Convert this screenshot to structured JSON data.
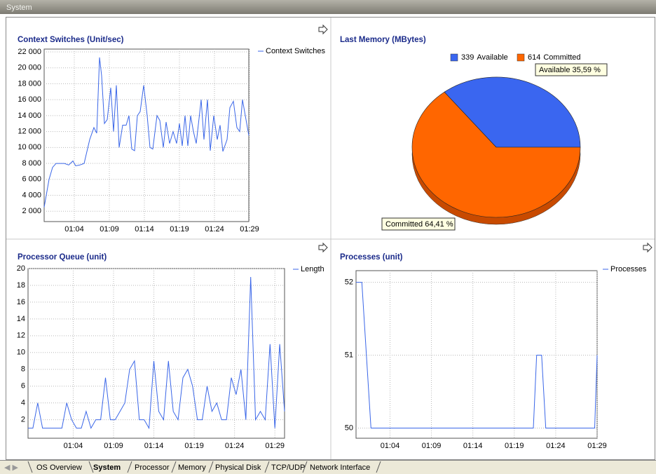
{
  "window": {
    "title": "System"
  },
  "chart_data": [
    {
      "type": "line",
      "title": "Context Switches (Unit/sec)",
      "x": [
        59.7,
        60.4,
        60.9,
        61.4,
        62,
        62.6,
        63.2,
        63.8,
        64.2,
        64.8,
        65.4,
        66.2,
        66.8,
        67.2,
        67.6,
        67.9,
        68.3,
        68.7,
        69.2,
        69.6,
        70,
        70.4,
        70.9,
        71.4,
        71.8,
        72.2,
        72.6,
        73,
        73.4,
        73.9,
        74.4,
        74.8,
        75.2,
        75.8,
        76.2,
        76.7,
        77.1,
        77.6,
        78.1,
        78.6,
        79,
        79.4,
        79.8,
        80.2,
        80.6,
        81,
        81.4,
        82.1,
        82.5,
        83,
        83.4,
        83.9,
        84.4,
        84.8,
        85.2,
        85.8,
        86.2,
        86.7,
        87.2,
        87.6,
        88,
        88.4,
        88.9
      ],
      "series": [
        {
          "name": "Context Switches",
          "color": "#3a66e8",
          "values": [
            2500,
            6000,
            7500,
            8000,
            8000,
            8000,
            7800,
            8300,
            7700,
            7800,
            8000,
            11000,
            12500,
            11800,
            21300,
            19000,
            13000,
            13500,
            17500,
            12000,
            17800,
            10000,
            12800,
            12800,
            14000,
            9800,
            9600,
            14000,
            14500,
            17800,
            14000,
            10000,
            9800,
            14000,
            13400,
            10000,
            13200,
            10500,
            12000,
            10500,
            13000,
            10200,
            14000,
            10200,
            14000,
            12000,
            10500,
            16000,
            11000,
            16000,
            9600,
            14000,
            11000,
            12800,
            9500,
            11000,
            15000,
            15800,
            12500,
            12000,
            16000,
            14000,
            11500
          ]
        }
      ],
      "xlim": [
        59.7,
        88.9
      ],
      "xticks": [
        {
          "value": 64,
          "label": "01:04"
        },
        {
          "value": 69,
          "label": "01:09"
        },
        {
          "value": 74,
          "label": "01:14"
        },
        {
          "value": 79,
          "label": "01:19"
        },
        {
          "value": 84,
          "label": "01:24"
        },
        {
          "value": 89,
          "label": "01:29"
        }
      ],
      "ylim": [
        700,
        22350
      ],
      "yticks": [
        {
          "value": 2000,
          "label": "2 000"
        },
        {
          "value": 4000,
          "label": "4 000"
        },
        {
          "value": 6000,
          "label": "6 000"
        },
        {
          "value": 8000,
          "label": "8 000"
        },
        {
          "value": 10000,
          "label": "10 000"
        },
        {
          "value": 12000,
          "label": "12 000"
        },
        {
          "value": 14000,
          "label": "14 000"
        },
        {
          "value": 16000,
          "label": "16 000"
        },
        {
          "value": 18000,
          "label": "18 000"
        },
        {
          "value": 20000,
          "label": "20 000"
        },
        {
          "value": 22000,
          "label": "22 000"
        }
      ],
      "grid": true
    },
    {
      "type": "pie",
      "title": "Last Memory (MBytes)",
      "categories": [
        "Available",
        "Committed"
      ],
      "values": [
        339,
        614
      ],
      "colors": [
        "#3a66f0",
        "#ff6600"
      ],
      "annotations": [
        "Available 35,59 %",
        "Committed 64,41 %"
      ]
    },
    {
      "type": "line",
      "title": "Processor Queue (unit)",
      "x": [
        58.4,
        59,
        59.6,
        60.2,
        60.8,
        61.4,
        62,
        62.6,
        63.2,
        63.8,
        64.4,
        65,
        65.6,
        66.2,
        66.8,
        67.4,
        68,
        68.6,
        69.2,
        69.8,
        70.4,
        71,
        71.6,
        72.2,
        72.8,
        73.4,
        74,
        74.6,
        75.2,
        75.8,
        76.4,
        77,
        77.6,
        78.2,
        78.8,
        79.4,
        80,
        80.6,
        81.2,
        81.8,
        82.4,
        83,
        83.6,
        84.2,
        84.8,
        85.4,
        86,
        86.6,
        87.2,
        87.8,
        88.4,
        89,
        89.6,
        90.2
      ],
      "series": [
        {
          "name": "Length",
          "color": "#3a66e8",
          "values": [
            1,
            1,
            4,
            1,
            1,
            1,
            1,
            1,
            4,
            2,
            1,
            1,
            3,
            1,
            2,
            2,
            7,
            2,
            2,
            3,
            4,
            8,
            9,
            2,
            2,
            1,
            9,
            3,
            2,
            9,
            3,
            2,
            7,
            8,
            6,
            2,
            2,
            6,
            3,
            4,
            2,
            2,
            7,
            5,
            8,
            2,
            19,
            2,
            3,
            2,
            11,
            1,
            11,
            3
          ]
        }
      ],
      "xlim": [
        58.4,
        90.2
      ],
      "xticks": [
        {
          "value": 64,
          "label": "01:04"
        },
        {
          "value": 69,
          "label": "01:09"
        },
        {
          "value": 74,
          "label": "01:14"
        },
        {
          "value": 79,
          "label": "01:19"
        },
        {
          "value": 84,
          "label": "01:24"
        },
        {
          "value": 89,
          "label": "01:29"
        }
      ],
      "ylim": [
        -0.2,
        20
      ],
      "yticks": [
        2,
        4,
        6,
        8,
        10,
        12,
        14,
        16,
        18,
        20
      ],
      "grid": true
    },
    {
      "type": "line",
      "title": "Processes (unit)",
      "x": [
        59.9,
        60.6,
        61.7,
        81.3,
        81.7,
        82.3,
        82.8,
        88.7,
        89
      ],
      "series": [
        {
          "name": "Processes",
          "color": "#3a66e8",
          "values": [
            52,
            52,
            50,
            50,
            51,
            51,
            50,
            50,
            51
          ]
        }
      ],
      "xlim": [
        59.9,
        89
      ],
      "xticks": [
        {
          "value": 64,
          "label": "01:04"
        },
        {
          "value": 69,
          "label": "01:09"
        },
        {
          "value": 74,
          "label": "01:14"
        },
        {
          "value": 79,
          "label": "01:19"
        },
        {
          "value": 84,
          "label": "01:24"
        },
        {
          "value": 89,
          "label": "01:29"
        }
      ],
      "ylim": [
        49.86,
        52.16
      ],
      "yticks": [
        50,
        51,
        52
      ],
      "grid": true
    }
  ],
  "tabs": [
    "OS Overview",
    "System",
    "Processor",
    "Memory",
    "Physical Disk",
    "TCP/UDP",
    "Network Interface"
  ]
}
